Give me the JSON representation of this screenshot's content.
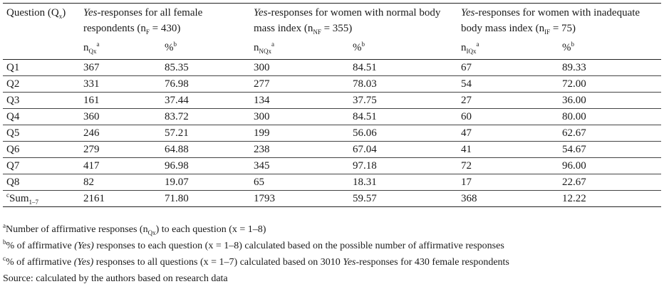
{
  "table": {
    "header": {
      "question": "Question (Q",
      "question_sub": "x",
      "question_close": ")",
      "col_all_yes": "Yes",
      "col_all_rest": "-responses for all female respondents (n",
      "col_all_sub": "F",
      "col_all_tail": " = 430)",
      "col_normal_yes": "Yes",
      "col_normal_rest": "-responses for women with normal body mass index (n",
      "col_normal_sub": "NF",
      "col_normal_tail": " = 355)",
      "col_inad_yes": "Yes",
      "col_inad_rest": "-responses for women with inadequate body mass index (n",
      "col_inad_sub": "IF",
      "col_inad_tail": " = 75)"
    },
    "subheader": {
      "n": "n",
      "all_sub": "Qx",
      "normal_sub": "NQx",
      "inad_sub": "IQx",
      "sup_a": "a",
      "pct": "%",
      "sup_b": "b"
    },
    "rows": [
      {
        "q": "Q1",
        "n_all": "367",
        "p_all": "85.35",
        "n_norm": "300",
        "p_norm": "84.51",
        "n_inad": "67",
        "p_inad": "89.33"
      },
      {
        "q": "Q2",
        "n_all": "331",
        "p_all": "76.98",
        "n_norm": "277",
        "p_norm": "78.03",
        "n_inad": "54",
        "p_inad": "72.00"
      },
      {
        "q": "Q3",
        "n_all": "161",
        "p_all": "37.44",
        "n_norm": "134",
        "p_norm": "37.75",
        "n_inad": "27",
        "p_inad": "36.00"
      },
      {
        "q": "Q4",
        "n_all": "360",
        "p_all": "83.72",
        "n_norm": "300",
        "p_norm": "84.51",
        "n_inad": "60",
        "p_inad": "80.00"
      },
      {
        "q": "Q5",
        "n_all": "246",
        "p_all": "57.21",
        "n_norm": "199",
        "p_norm": "56.06",
        "n_inad": "47",
        "p_inad": "62.67"
      },
      {
        "q": "Q6",
        "n_all": "279",
        "p_all": "64.88",
        "n_norm": "238",
        "p_norm": "67.04",
        "n_inad": "41",
        "p_inad": "54.67"
      },
      {
        "q": "Q7",
        "n_all": "417",
        "p_all": "96.98",
        "n_norm": "345",
        "p_norm": "97.18",
        "n_inad": "72",
        "p_inad": "96.00"
      },
      {
        "q": "Q8",
        "n_all": "82",
        "p_all": "19.07",
        "n_norm": "65",
        "p_norm": "18.31",
        "n_inad": "17",
        "p_inad": "22.67"
      }
    ],
    "sum_row": {
      "sup": "c",
      "label": "Sum",
      "sub": "1–7",
      "n_all": "2161",
      "p_all": "71.80",
      "n_norm": "1793",
      "p_norm": "59.57",
      "n_inad": "368",
      "p_inad": "12.22"
    }
  },
  "notes": {
    "a_sup": "a",
    "a_text1": "Number of affirmative responses (n",
    "a_sub": "Qx",
    "a_text2": ") to each question (x = 1–8)",
    "b_sup": "b",
    "b_text1": "% of affirmative ",
    "b_italic": "(Yes)",
    "b_text2": " responses to each question (x = 1–8) calculated based on the possible number of affirmative responses",
    "c_sup": "c",
    "c_text1": "% of affirmative ",
    "c_italic1": "(Yes)",
    "c_text2": " responses to all questions (x = 1–7) calculated based on 3010 ",
    "c_italic2": "Yes",
    "c_text3": "-responses for 430 female respondents",
    "source": "Source: calculated by the authors based on research data"
  }
}
